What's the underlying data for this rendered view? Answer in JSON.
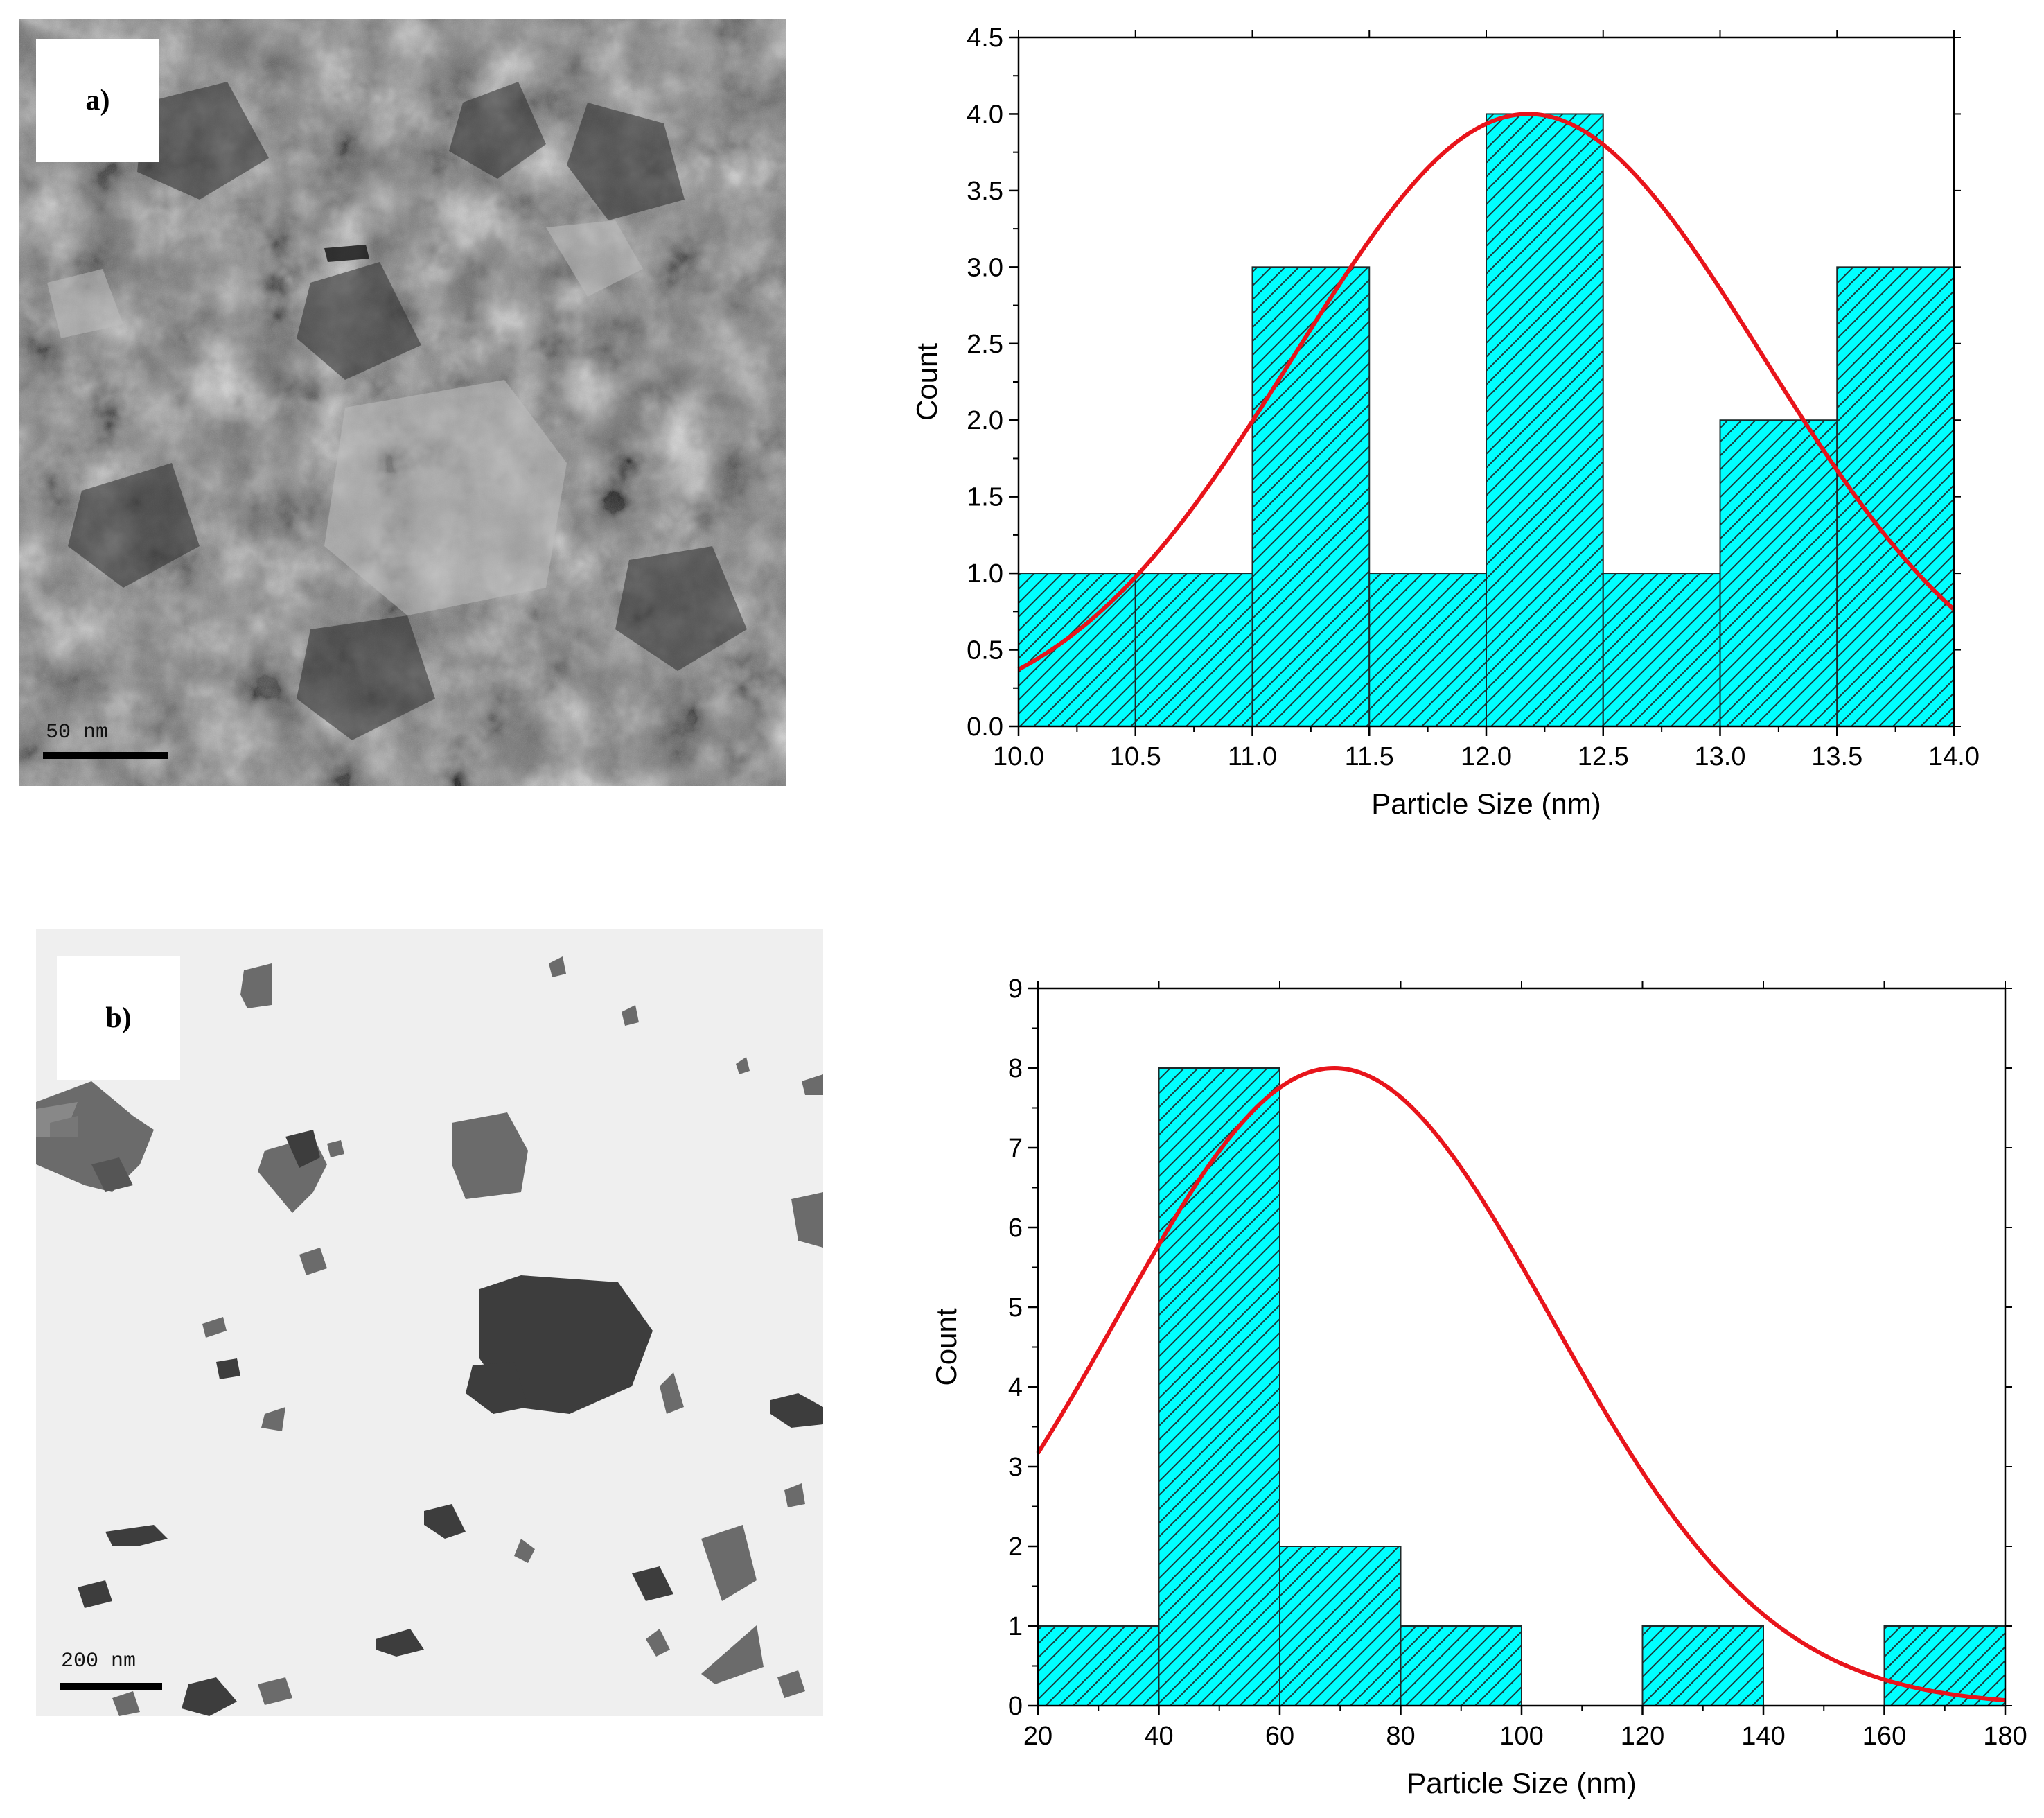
{
  "panels": [
    {
      "label": "a)",
      "scale_text": "50 nm"
    },
    {
      "label": "b)",
      "scale_text": "200 nm"
    }
  ],
  "colors": {
    "bar_fill": "#00ffff",
    "bar_hatch": "#1a3a3a",
    "fit_line": "#e8141b",
    "axis": "#000000"
  },
  "chart_data": [
    {
      "type": "bar",
      "bin_edges": [
        10.0,
        10.5,
        11.0,
        11.5,
        12.0,
        12.5,
        13.0,
        13.5,
        14.0
      ],
      "values": [
        1,
        1,
        3,
        1,
        4,
        1,
        2,
        3
      ],
      "fit": {
        "type": "gaussian",
        "peak": 4.0,
        "center": 12.18,
        "sigma": 1.0
      },
      "xlabel": "Particle Size (nm)",
      "ylabel": "Count",
      "xlim": [
        10.0,
        14.0
      ],
      "ylim": [
        0.0,
        4.5
      ],
      "xticks": [
        "10.0",
        "10.5",
        "11.0",
        "11.5",
        "12.0",
        "12.5",
        "13.0",
        "13.5",
        "14.0"
      ],
      "yticks": [
        "0.0",
        "0.5",
        "1.0",
        "1.5",
        "2.0",
        "2.5",
        "3.0",
        "3.5",
        "4.0",
        "4.5"
      ],
      "grid": false
    },
    {
      "type": "bar",
      "bin_edges": [
        20,
        40,
        60,
        80,
        100,
        120,
        140,
        160,
        180
      ],
      "values": [
        1,
        8,
        2,
        1,
        0,
        1,
        0,
        1
      ],
      "fit": {
        "type": "gaussian",
        "peak": 8.0,
        "center": 69,
        "sigma": 36
      },
      "xlabel": "Particle Size (nm)",
      "ylabel": "Count",
      "xlim": [
        20,
        180
      ],
      "ylim": [
        0,
        9
      ],
      "xticks": [
        "20",
        "40",
        "60",
        "80",
        "100",
        "120",
        "140",
        "160",
        "180"
      ],
      "yticks": [
        "0",
        "1",
        "2",
        "3",
        "4",
        "5",
        "6",
        "7",
        "8",
        "9"
      ],
      "grid": false
    }
  ]
}
